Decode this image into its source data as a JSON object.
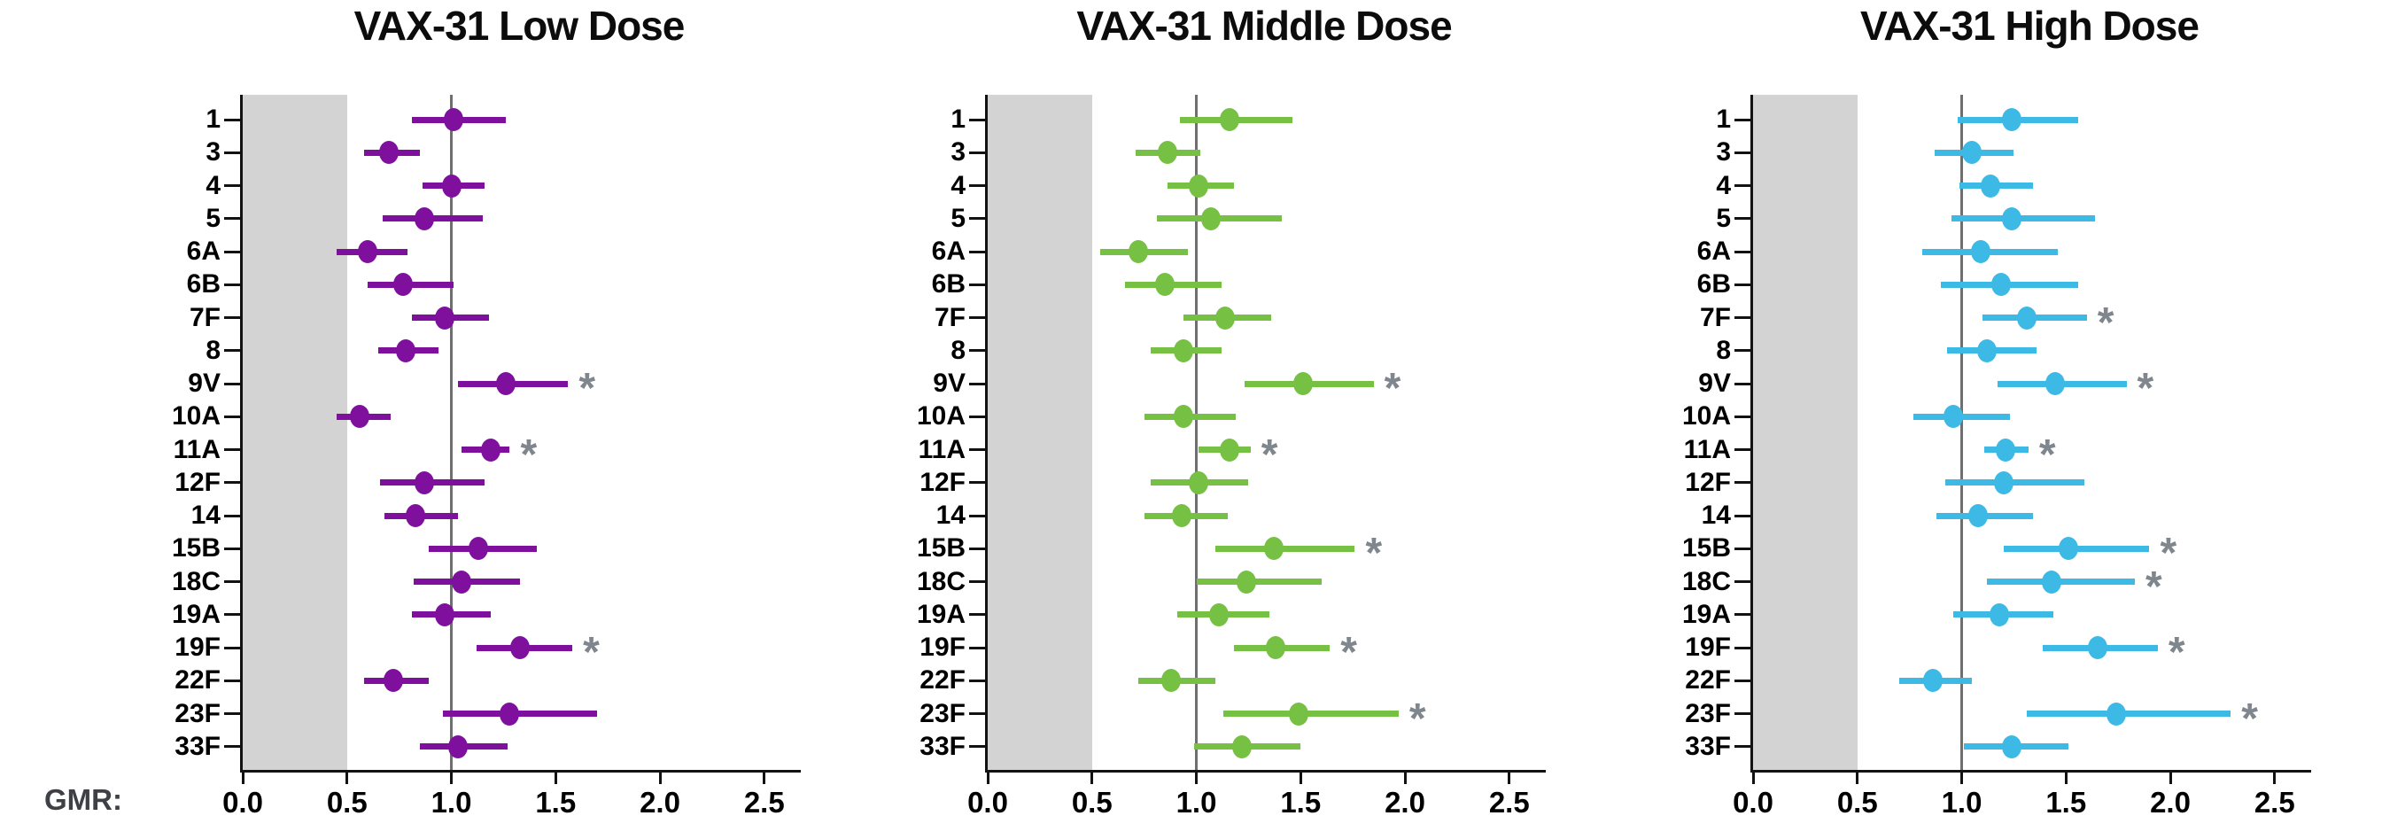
{
  "page": {
    "background": "#ffffff",
    "gmr_axis_label": "GMR:"
  },
  "axis": {
    "tick_labels": [
      "0.0",
      "0.5",
      "1.0",
      "1.5",
      "2.0",
      "2.5"
    ],
    "tick_values": [
      0,
      0.5,
      1.0,
      1.5,
      2.0,
      2.5
    ],
    "xlim": [
      0,
      2.675
    ],
    "shaded_band": {
      "from": 0,
      "to": 0.5,
      "color": "#d3d3d3"
    },
    "reference_line": {
      "value": 1.0,
      "color": "#6f6f6f"
    },
    "axis_color": "#121212"
  },
  "significance": {
    "symbol": "*",
    "color": "#80868d"
  },
  "chart_data": [
    {
      "type": "scatter",
      "subtype": "forest-dot-whisker",
      "title": "VAX-31 Low Dose",
      "color": "#7f109d",
      "xlabel": "GMR:",
      "xlim": [
        0,
        2.675
      ],
      "xticks": [
        0,
        0.5,
        1.0,
        1.5,
        2.0,
        2.5
      ],
      "shaded_band": [
        0,
        0.5
      ],
      "reference_line": 1.0,
      "legend": "none",
      "grid": false,
      "categories": [
        "1",
        "3",
        "4",
        "5",
        "6A",
        "6B",
        "7F",
        "8",
        "9V",
        "10A",
        "11A",
        "12F",
        "14",
        "15B",
        "18C",
        "19A",
        "19F",
        "22F",
        "23F",
        "33F"
      ],
      "values": [
        1.01,
        0.7,
        1.0,
        0.87,
        0.6,
        0.77,
        0.97,
        0.78,
        1.26,
        0.56,
        1.19,
        0.87,
        0.83,
        1.13,
        1.05,
        0.97,
        1.33,
        0.72,
        1.28,
        1.03
      ],
      "ci_low": [
        0.81,
        0.58,
        0.86,
        0.67,
        0.45,
        0.6,
        0.81,
        0.65,
        1.03,
        0.45,
        1.05,
        0.66,
        0.68,
        0.89,
        0.82,
        0.81,
        1.12,
        0.58,
        0.96,
        0.85
      ],
      "ci_high": [
        1.26,
        0.85,
        1.16,
        1.15,
        0.79,
        1.01,
        1.18,
        0.94,
        1.56,
        0.71,
        1.28,
        1.16,
        1.03,
        1.41,
        1.33,
        1.19,
        1.58,
        0.89,
        1.7,
        1.27
      ],
      "significant": [
        false,
        false,
        false,
        false,
        false,
        false,
        false,
        false,
        true,
        false,
        true,
        false,
        false,
        false,
        false,
        false,
        true,
        false,
        false,
        false
      ]
    },
    {
      "type": "scatter",
      "subtype": "forest-dot-whisker",
      "title": "VAX-31 Middle Dose",
      "color": "#76c044",
      "xlabel": "GMR:",
      "xlim": [
        0,
        2.675
      ],
      "xticks": [
        0,
        0.5,
        1.0,
        1.5,
        2.0,
        2.5
      ],
      "shaded_band": [
        0,
        0.5
      ],
      "reference_line": 1.0,
      "legend": "none",
      "grid": false,
      "categories": [
        "1",
        "3",
        "4",
        "5",
        "6A",
        "6B",
        "7F",
        "8",
        "9V",
        "10A",
        "11A",
        "12F",
        "14",
        "15B",
        "18C",
        "19A",
        "19F",
        "22F",
        "23F",
        "33F"
      ],
      "values": [
        1.16,
        0.86,
        1.01,
        1.07,
        0.72,
        0.85,
        1.14,
        0.94,
        1.51,
        0.94,
        1.16,
        1.01,
        0.93,
        1.37,
        1.24,
        1.11,
        1.38,
        0.88,
        1.49,
        1.22
      ],
      "ci_low": [
        0.92,
        0.71,
        0.86,
        0.81,
        0.54,
        0.66,
        0.94,
        0.78,
        1.23,
        0.75,
        1.01,
        0.78,
        0.75,
        1.09,
        1.0,
        0.91,
        1.18,
        0.72,
        1.13,
        0.99
      ],
      "ci_high": [
        1.46,
        1.02,
        1.18,
        1.41,
        0.96,
        1.12,
        1.36,
        1.12,
        1.85,
        1.19,
        1.26,
        1.25,
        1.15,
        1.76,
        1.6,
        1.35,
        1.64,
        1.09,
        1.97,
        1.5
      ],
      "significant": [
        false,
        false,
        false,
        false,
        false,
        false,
        false,
        false,
        true,
        false,
        true,
        false,
        false,
        true,
        false,
        false,
        true,
        false,
        true,
        false
      ]
    },
    {
      "type": "scatter",
      "subtype": "forest-dot-whisker",
      "title": "VAX-31 High Dose",
      "color": "#3db9e6",
      "xlabel": "GMR:",
      "xlim": [
        0,
        2.675
      ],
      "xticks": [
        0,
        0.5,
        1.0,
        1.5,
        2.0,
        2.5
      ],
      "shaded_band": [
        0,
        0.5
      ],
      "reference_line": 1.0,
      "legend": "none",
      "grid": false,
      "categories": [
        "1",
        "3",
        "4",
        "5",
        "6A",
        "6B",
        "7F",
        "8",
        "9V",
        "10A",
        "11A",
        "12F",
        "14",
        "15B",
        "18C",
        "19A",
        "19F",
        "22F",
        "23F",
        "33F"
      ],
      "values": [
        1.24,
        1.05,
        1.14,
        1.24,
        1.09,
        1.19,
        1.31,
        1.12,
        1.45,
        0.96,
        1.21,
        1.2,
        1.08,
        1.51,
        1.43,
        1.18,
        1.65,
        0.86,
        1.74,
        1.24
      ],
      "ci_low": [
        0.98,
        0.87,
        0.99,
        0.95,
        0.81,
        0.9,
        1.1,
        0.93,
        1.17,
        0.77,
        1.11,
        0.92,
        0.88,
        1.2,
        1.12,
        0.96,
        1.39,
        0.7,
        1.31,
        1.01
      ],
      "ci_high": [
        1.56,
        1.25,
        1.34,
        1.64,
        1.46,
        1.56,
        1.6,
        1.36,
        1.79,
        1.23,
        1.32,
        1.59,
        1.34,
        1.9,
        1.83,
        1.44,
        1.94,
        1.05,
        2.29,
        1.51
      ],
      "significant": [
        false,
        false,
        false,
        false,
        false,
        false,
        true,
        false,
        true,
        false,
        true,
        false,
        false,
        true,
        true,
        false,
        true,
        false,
        true,
        false
      ]
    }
  ]
}
